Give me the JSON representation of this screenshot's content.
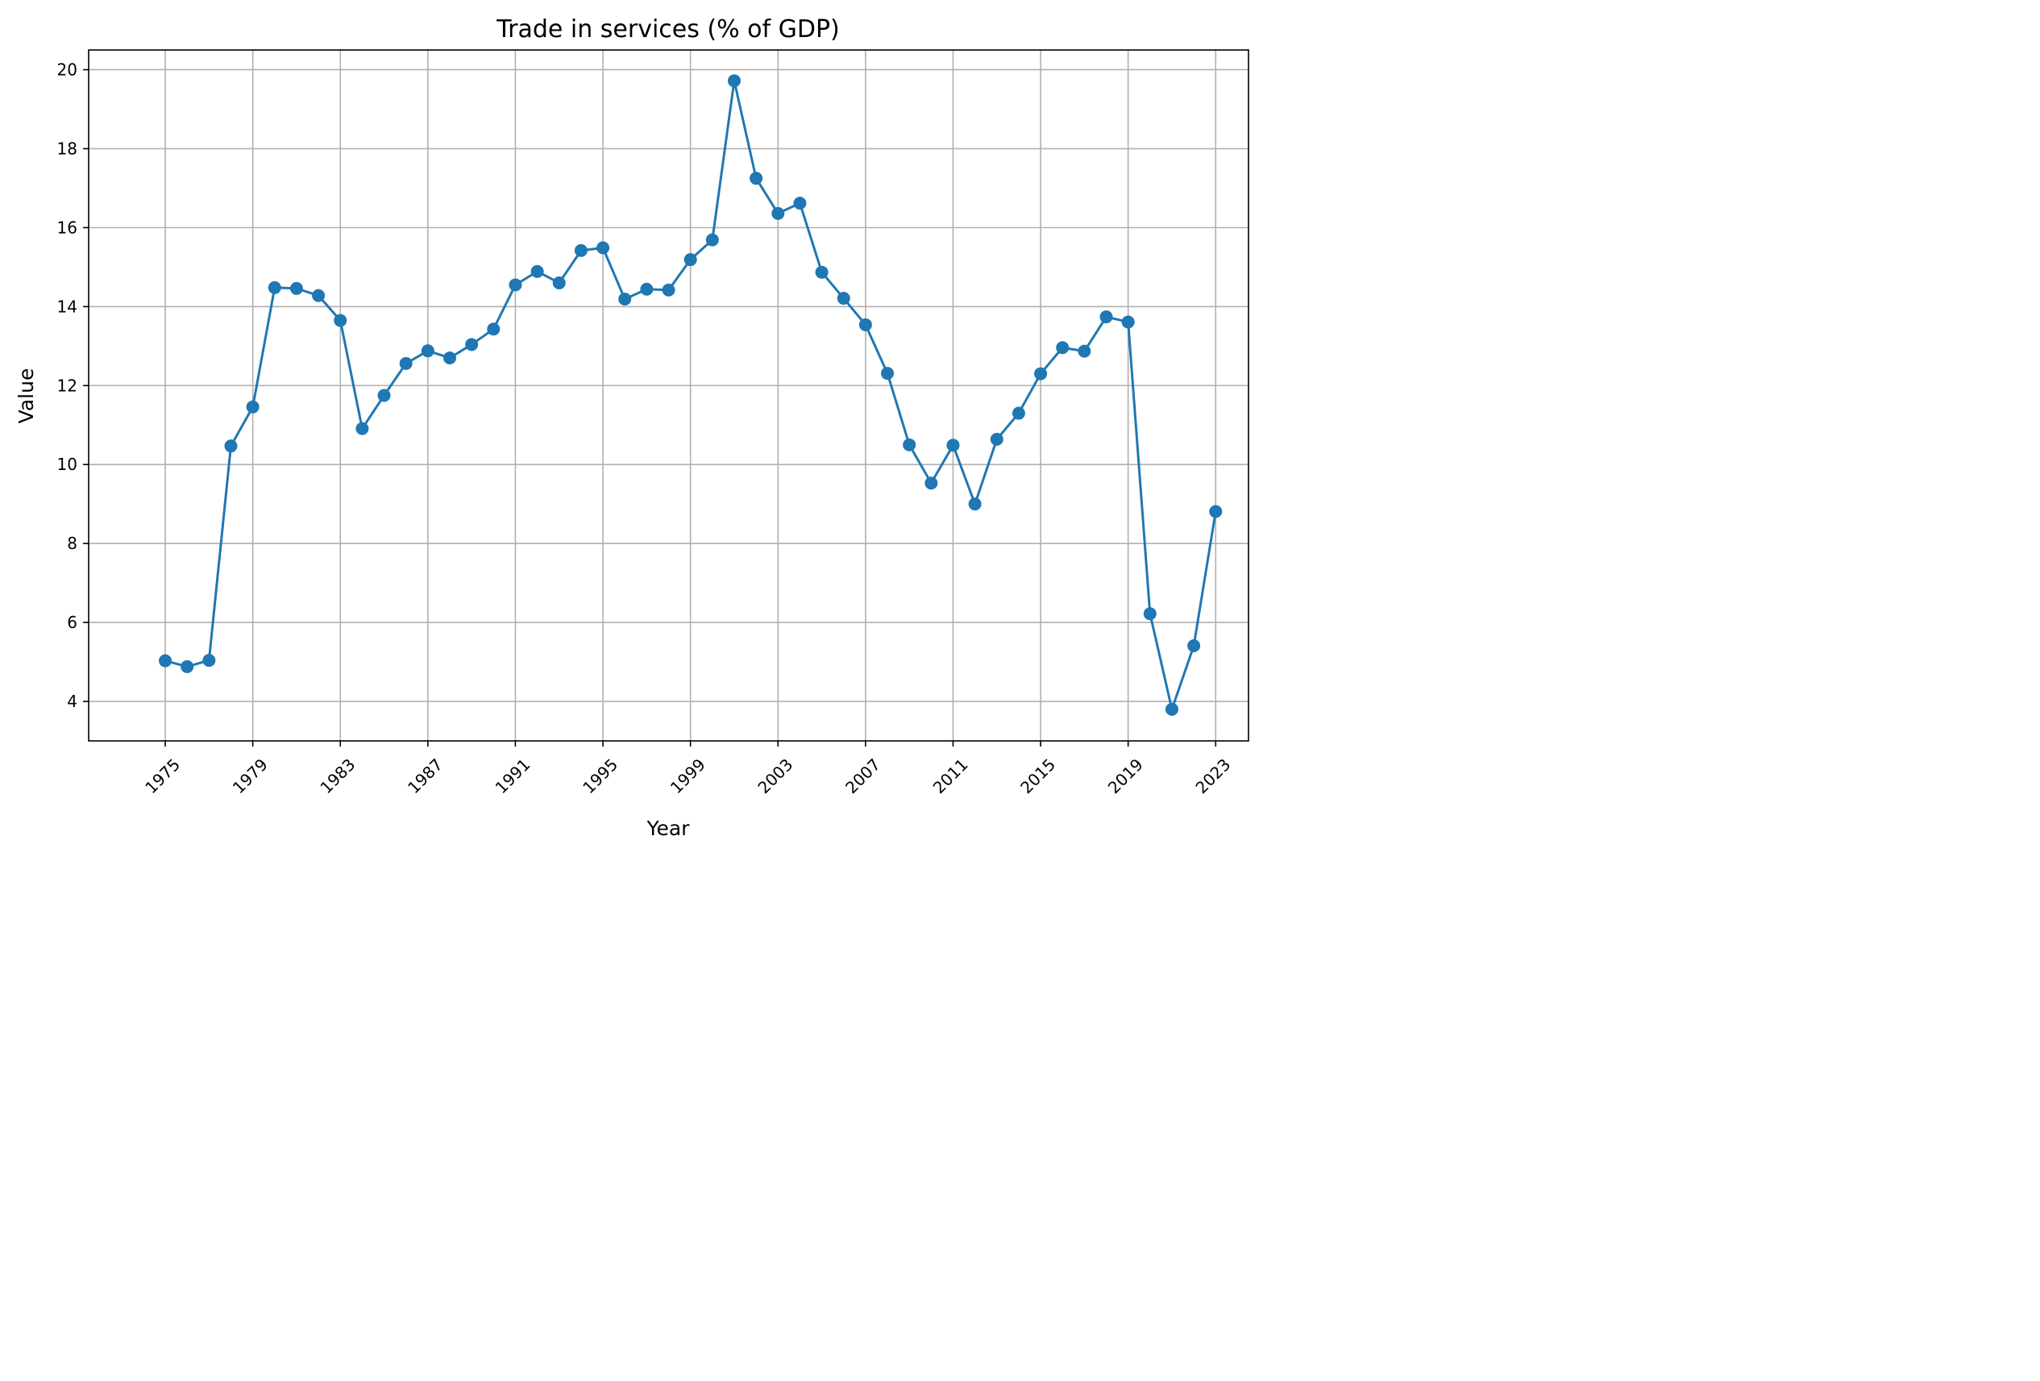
{
  "chart_data": {
    "type": "line",
    "title": "Trade in services (% of GDP)",
    "xlabel": "Year",
    "ylabel": "Value",
    "xlim": [
      1971.5,
      2024.5
    ],
    "ylim": [
      3.0,
      20.5
    ],
    "x_ticks": [
      1975,
      1979,
      1983,
      1987,
      1991,
      1995,
      1999,
      2003,
      2007,
      2011,
      2015,
      2019,
      2023
    ],
    "x_tick_rotation_deg": 45,
    "y_ticks": [
      4,
      6,
      8,
      10,
      12,
      14,
      16,
      18,
      20
    ],
    "grid": true,
    "legend": "none",
    "color": "#1f77b4",
    "marker": "circle",
    "series": [
      {
        "x": [
          1975,
          1976,
          1977,
          1978,
          1979,
          1980,
          1981,
          1982,
          1983,
          1984,
          1985,
          1986,
          1987,
          1988,
          1989,
          1990,
          1991,
          1992,
          1993,
          1994,
          1995,
          1996,
          1997,
          1998,
          1999,
          2000,
          2001,
          2002,
          2003,
          2004,
          2005,
          2006,
          2007,
          2008,
          2009,
          2010,
          2011,
          2012,
          2013,
          2014,
          2015,
          2016,
          2017,
          2018,
          2019,
          2020,
          2021,
          2022,
          2023
        ],
        "values": [
          5.03,
          4.88,
          5.04,
          10.47,
          11.46,
          14.48,
          14.46,
          14.28,
          13.65,
          10.91,
          11.75,
          12.56,
          12.88,
          12.7,
          13.04,
          13.43,
          14.55,
          14.89,
          14.6,
          15.42,
          15.49,
          14.19,
          14.44,
          14.42,
          15.19,
          15.69,
          19.72,
          17.25,
          16.36,
          16.62,
          14.87,
          14.21,
          13.54,
          12.31,
          10.5,
          9.53,
          10.49,
          9.0,
          10.64,
          11.3,
          12.3,
          12.96,
          12.87,
          13.74,
          13.61,
          6.22,
          3.8,
          5.41,
          8.81
        ]
      }
    ]
  }
}
